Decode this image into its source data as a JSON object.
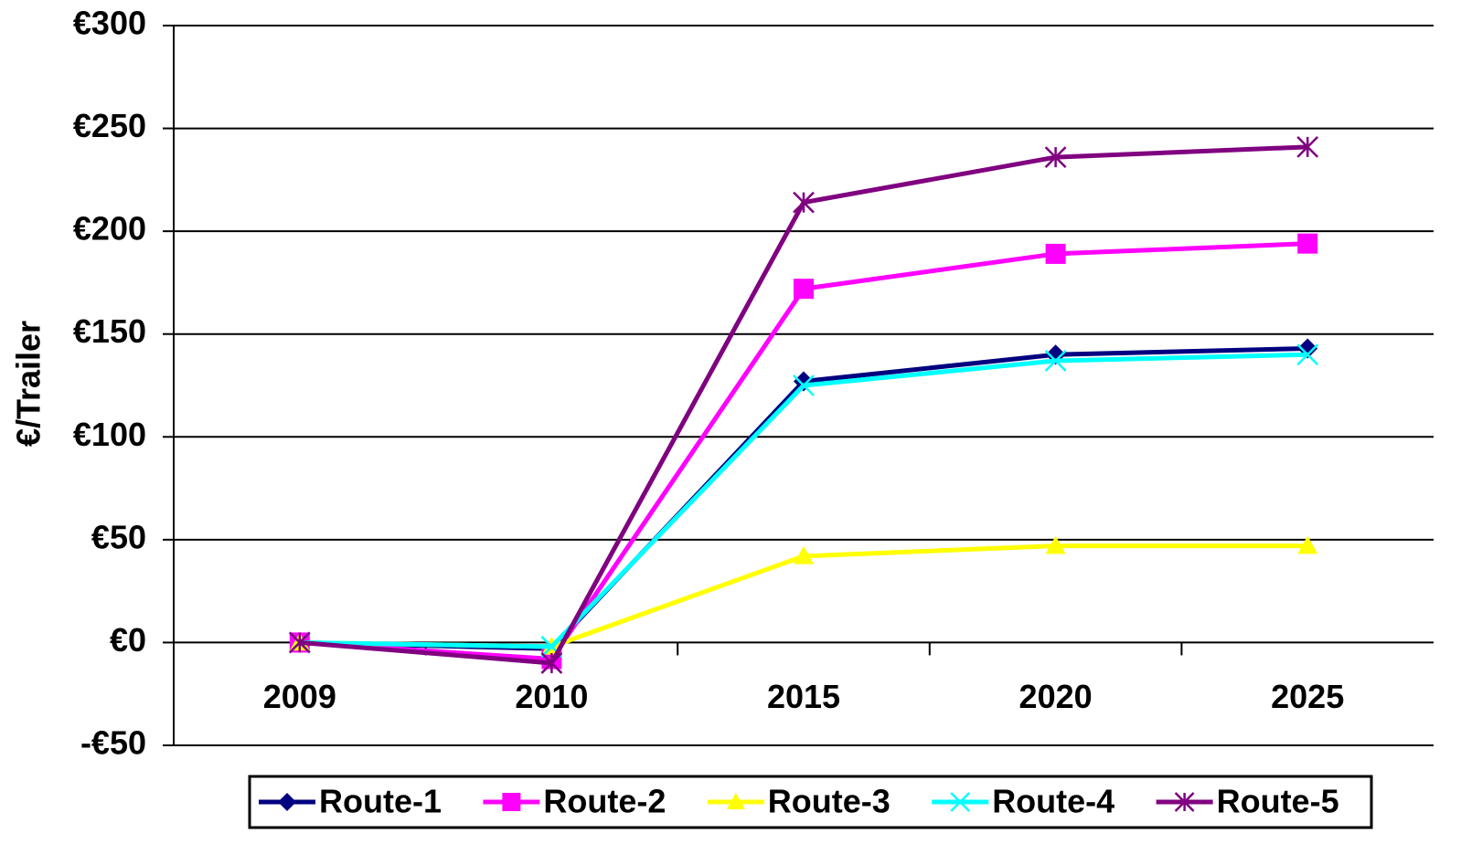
{
  "chart_data": {
    "type": "line",
    "y_label": "€/Trailer",
    "categories": [
      "2009",
      "2010",
      "2015",
      "2020",
      "2025"
    ],
    "series": [
      {
        "name": "Route-1",
        "color": "#000080",
        "marker": "diamond",
        "values": [
          0,
          -3,
          127,
          140,
          143
        ]
      },
      {
        "name": "Route-2",
        "color": "#ff00ff",
        "marker": "square",
        "values": [
          0,
          -8,
          172,
          189,
          194
        ]
      },
      {
        "name": "Route-3",
        "color": "#ffff00",
        "marker": "triangle",
        "values": [
          0,
          -2,
          42,
          47,
          47
        ]
      },
      {
        "name": "Route-4",
        "color": "#00ffff",
        "marker": "x",
        "values": [
          0,
          -2,
          125,
          137,
          140
        ]
      },
      {
        "name": "Route-5",
        "color": "#800080",
        "marker": "star",
        "values": [
          0,
          -10,
          214,
          236,
          241
        ]
      }
    ],
    "ylim": [
      -50,
      300
    ],
    "yticks": [
      {
        "value": -50,
        "label": "-€50"
      },
      {
        "value": 0,
        "label": "€0"
      },
      {
        "value": 50,
        "label": "€50"
      },
      {
        "value": 100,
        "label": "€100"
      },
      {
        "value": 150,
        "label": "€150"
      },
      {
        "value": 200,
        "label": "€200"
      },
      {
        "value": 250,
        "label": "€250"
      },
      {
        "value": 300,
        "label": "€300"
      }
    ],
    "grid": true,
    "legend": "bottom"
  }
}
